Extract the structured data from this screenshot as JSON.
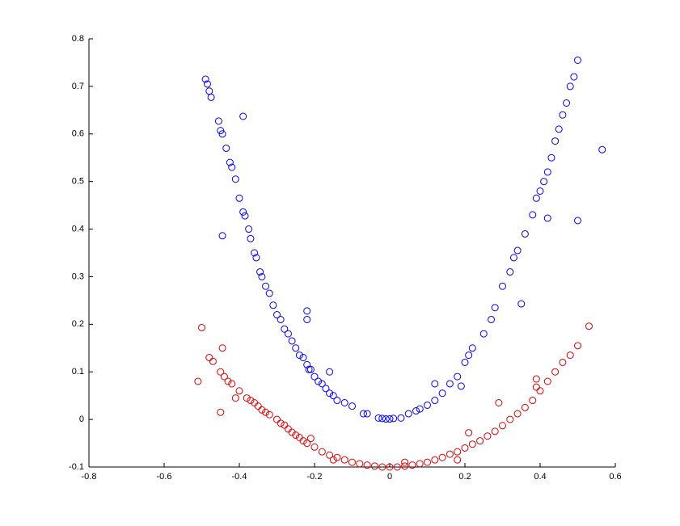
{
  "chart_data": {
    "type": "scatter",
    "xlim": [
      -0.8,
      0.6
    ],
    "xticks": [
      -0.8,
      -0.6,
      -0.4,
      -0.2,
      0,
      0.2,
      0.4,
      0.6
    ],
    "ylim": [
      -0.1,
      0.8
    ],
    "yticks": [
      -0.1,
      0,
      0.1,
      0.2,
      0.3,
      0.4,
      0.5,
      0.6,
      0.7,
      0.8
    ],
    "grid": false,
    "series": [
      {
        "color": "#0000ff",
        "x": [
          -0.49,
          -0.485,
          -0.48,
          -0.475,
          -0.455,
          -0.45,
          -0.445,
          -0.435,
          -0.425,
          -0.42,
          -0.41,
          -0.4,
          -0.39,
          -0.385,
          -0.375,
          -0.37,
          -0.36,
          -0.355,
          -0.345,
          -0.34,
          -0.33,
          -0.32,
          -0.31,
          -0.3,
          -0.29,
          -0.28,
          -0.27,
          -0.26,
          -0.25,
          -0.24,
          -0.23,
          -0.22,
          -0.21,
          -0.2,
          -0.19,
          -0.18,
          -0.17,
          -0.16,
          -0.15,
          -0.14,
          -0.12,
          -0.1,
          -0.06,
          -0.03,
          -0.02,
          -0.01,
          0,
          0.01,
          0.03,
          0.05,
          0.07,
          0.08,
          0.1,
          0.12,
          0.14,
          0.16,
          0.18,
          0.2,
          0.21,
          0.22,
          0.25,
          0.27,
          0.28,
          0.3,
          0.32,
          0.33,
          0.34,
          0.36,
          0.38,
          0.39,
          0.4,
          0.41,
          0.42,
          0.43,
          0.44,
          0.45,
          0.46,
          0.47,
          0.48,
          0.49,
          0.5,
          -0.39,
          -0.445,
          -0.22,
          -0.22,
          -0.215,
          -0.16,
          -0.07,
          0.19,
          0.35,
          0.42,
          0.5,
          0.565,
          0.12
        ],
        "values": [
          0.715,
          0.705,
          0.69,
          0.677,
          0.627,
          0.607,
          0.6,
          0.57,
          0.54,
          0.53,
          0.505,
          0.465,
          0.436,
          0.428,
          0.4,
          0.38,
          0.35,
          0.34,
          0.31,
          0.3,
          0.28,
          0.265,
          0.24,
          0.22,
          0.21,
          0.19,
          0.18,
          0.165,
          0.15,
          0.135,
          0.13,
          0.115,
          0.105,
          0.09,
          0.08,
          0.075,
          0.065,
          0.055,
          0.05,
          0.04,
          0.035,
          0.028,
          0.012,
          0.003,
          0.002,
          0.001,
          0.001,
          0.002,
          0.003,
          0.012,
          0.018,
          0.022,
          0.03,
          0.04,
          0.055,
          0.075,
          0.09,
          0.12,
          0.135,
          0.15,
          0.18,
          0.21,
          0.235,
          0.28,
          0.31,
          0.34,
          0.355,
          0.39,
          0.43,
          0.465,
          0.48,
          0.5,
          0.52,
          0.55,
          0.585,
          0.61,
          0.64,
          0.665,
          0.7,
          0.72,
          0.755,
          0.637,
          0.386,
          0.228,
          0.21,
          0.105,
          0.1,
          0.012,
          0.07,
          0.243,
          0.423,
          0.418,
          0.567,
          0.075
        ]
      },
      {
        "color": "#e00000",
        "x": [
          -0.5,
          -0.48,
          -0.47,
          -0.45,
          -0.44,
          -0.43,
          -0.42,
          -0.4,
          -0.38,
          -0.37,
          -0.36,
          -0.35,
          -0.34,
          -0.33,
          -0.32,
          -0.3,
          -0.29,
          -0.28,
          -0.27,
          -0.26,
          -0.25,
          -0.24,
          -0.23,
          -0.22,
          -0.2,
          -0.18,
          -0.16,
          -0.14,
          -0.12,
          -0.1,
          -0.08,
          -0.06,
          -0.04,
          -0.02,
          0,
          0.02,
          0.04,
          0.06,
          0.08,
          0.1,
          0.12,
          0.14,
          0.16,
          0.18,
          0.2,
          0.22,
          0.24,
          0.26,
          0.28,
          0.3,
          0.32,
          0.34,
          0.36,
          0.38,
          0.4,
          0.42,
          0.44,
          0.46,
          0.48,
          0.5,
          0.53,
          -0.51,
          -0.445,
          -0.45,
          -0.41,
          -0.21,
          -0.15,
          0.04,
          0.18,
          0.21,
          0.29,
          0.39,
          0.39
        ],
        "values": [
          0.193,
          0.13,
          0.122,
          0.1,
          0.09,
          0.08,
          0.075,
          0.06,
          0.045,
          0.04,
          0.035,
          0.028,
          0.02,
          0.015,
          0.01,
          0.0,
          -0.008,
          -0.012,
          -0.02,
          -0.027,
          -0.033,
          -0.038,
          -0.045,
          -0.05,
          -0.058,
          -0.068,
          -0.075,
          -0.08,
          -0.085,
          -0.09,
          -0.093,
          -0.096,
          -0.098,
          -0.1,
          -0.1,
          -0.1,
          -0.098,
          -0.096,
          -0.093,
          -0.09,
          -0.085,
          -0.08,
          -0.073,
          -0.068,
          -0.06,
          -0.052,
          -0.045,
          -0.035,
          -0.025,
          -0.013,
          0.0,
          0.012,
          0.025,
          0.04,
          0.06,
          0.08,
          0.1,
          0.12,
          0.135,
          0.155,
          0.196,
          0.08,
          0.15,
          0.015,
          0.045,
          -0.04,
          -0.085,
          -0.09,
          -0.085,
          -0.028,
          0.035,
          0.085,
          0.068
        ]
      }
    ]
  }
}
